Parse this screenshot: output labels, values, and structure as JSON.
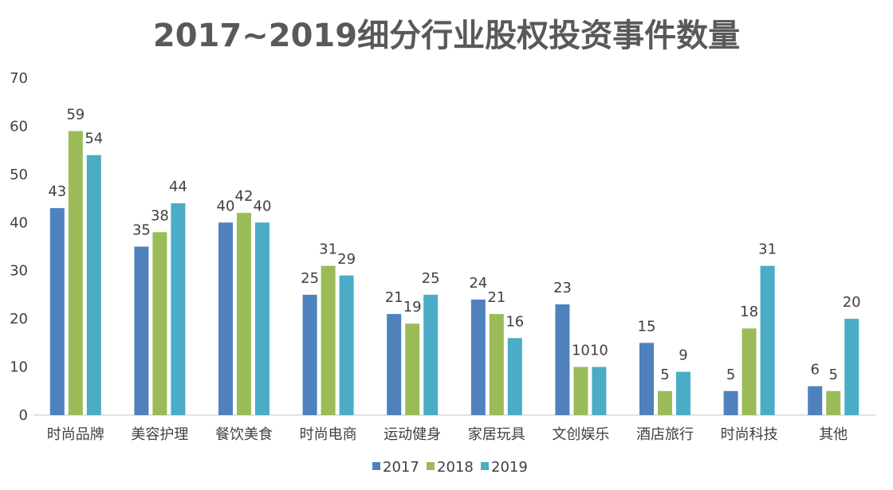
{
  "chart_data": {
    "type": "bar",
    "title": "2017~2019细分行业股权投资事件数量",
    "xlabel": "",
    "ylabel": "",
    "ylim": [
      0,
      70
    ],
    "yticks": [
      0,
      10,
      20,
      30,
      40,
      50,
      60,
      70
    ],
    "grid": false,
    "legend_position": "bottom",
    "categories": [
      "时尚品牌",
      "美容护理",
      "餐饮美食",
      "时尚电商",
      "运动健身",
      "家居玩具",
      "文创娱乐",
      "酒店旅行",
      "时尚科技",
      "其他"
    ],
    "series": [
      {
        "name": "2017",
        "color": "#4f81bd",
        "values": [
          43,
          35,
          40,
          25,
          21,
          24,
          23,
          15,
          5,
          6
        ]
      },
      {
        "name": "2018",
        "color": "#9bbb59",
        "values": [
          59,
          38,
          42,
          31,
          19,
          21,
          10,
          5,
          18,
          5
        ]
      },
      {
        "name": "2019",
        "color": "#4bacc6",
        "values": [
          54,
          44,
          40,
          29,
          25,
          16,
          10,
          9,
          31,
          20
        ]
      }
    ]
  }
}
